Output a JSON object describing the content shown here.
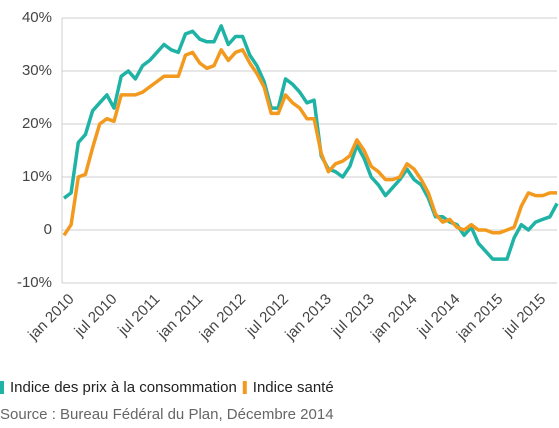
{
  "chart_data": {
    "type": "line",
    "categories": [
      "jan 2010",
      null,
      null,
      null,
      null,
      null,
      "jul 2010",
      null,
      null,
      null,
      null,
      null,
      "jul 2011",
      null,
      null,
      null,
      null,
      null,
      "jan 2011",
      null,
      null,
      null,
      null,
      null,
      "jan 2012",
      null,
      null,
      null,
      null,
      null,
      "jul 2012",
      null,
      null,
      null,
      null,
      null,
      "jan 2013",
      null,
      null,
      null,
      null,
      null,
      "jul 2013",
      null,
      null,
      null,
      null,
      null,
      "jan 2014",
      null,
      null,
      null,
      null,
      null,
      "jul 2014",
      null,
      null,
      null,
      null,
      null,
      "jan 2015",
      null,
      null,
      null,
      null,
      null,
      "jul 2015",
      null,
      null,
      null
    ],
    "series": [
      {
        "name": "Indice des prix à la consommation",
        "color": "#1fb3a6",
        "values": [
          6,
          7,
          16.5,
          18,
          22.5,
          24,
          25.5,
          23,
          29,
          30,
          28.5,
          31,
          32,
          33.5,
          35,
          34,
          33.5,
          37,
          37.5,
          36,
          35.5,
          35.5,
          38.5,
          35,
          36.5,
          36.5,
          33,
          31,
          28,
          23,
          23,
          28.5,
          27.5,
          26,
          24,
          24.5,
          14,
          11.5,
          11,
          10,
          12,
          16,
          13.5,
          10,
          8.5,
          6.5,
          8,
          9.5,
          11.5,
          9.5,
          8.5,
          6,
          2.5,
          2.5,
          1.5,
          1,
          -1,
          0.5,
          -2.5,
          -4,
          -5.5,
          -5.5,
          -5.5,
          -1.5,
          1,
          0,
          1.5,
          2,
          2.5,
          5
        ]
      },
      {
        "name": "Indice santé",
        "color": "#f39a1e",
        "values": [
          -1,
          1,
          10,
          10.5,
          15.5,
          20,
          21,
          20.5,
          25.5,
          25.5,
          25.5,
          26,
          27,
          28,
          29,
          29,
          29,
          33,
          33.5,
          31.5,
          30.5,
          31,
          34,
          32,
          33.5,
          34,
          31.5,
          29.5,
          27,
          22,
          22,
          25.5,
          24,
          23,
          21,
          21,
          14.5,
          11,
          12.5,
          13,
          14,
          17,
          15,
          12,
          11,
          9.5,
          9.5,
          10,
          12.5,
          11.5,
          9.5,
          7,
          3,
          1.5,
          2,
          0.5,
          0,
          1,
          0,
          0,
          -0.5,
          -0.5,
          0,
          0.5,
          4.5,
          7,
          6.5,
          6.5,
          7,
          7
        ]
      }
    ],
    "ylim": [
      -10,
      40
    ],
    "yticks": [
      {
        "value": -10,
        "label": "-10%"
      },
      0,
      {
        "value": 10,
        "label": "10%"
      },
      {
        "value": 20,
        "label": "20%"
      },
      {
        "value": 30,
        "label": "30%"
      },
      {
        "value": 40,
        "label": "40%"
      }
    ],
    "grid": true,
    "source": "Source : Bureau Fédéral du Plan, Décembre 2014"
  }
}
